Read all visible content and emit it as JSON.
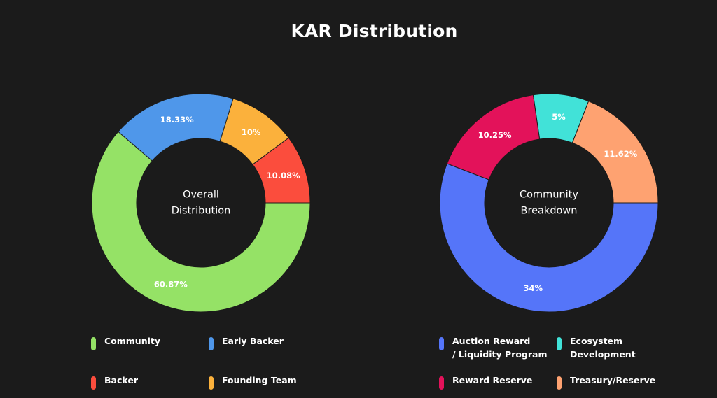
{
  "title": "KAR Distribution",
  "chart_data": [
    {
      "type": "pie",
      "variant": "donut",
      "center_label": [
        "Overall",
        "Distribution"
      ],
      "slices": [
        {
          "label": "Community",
          "value": 60.87,
          "display": "60.87%",
          "color": "#95e266"
        },
        {
          "label": "Early Backer",
          "value": 18.33,
          "display": "18.33%",
          "color": "#4f97ea"
        },
        {
          "label": "Founding Team",
          "value": 10,
          "display": "10%",
          "color": "#fbb13c"
        },
        {
          "label": "Backer",
          "value": 10.08,
          "display": "10.08%",
          "color": "#fb4d3d"
        }
      ],
      "legend_order": [
        "Community",
        "Early Backer",
        "Backer",
        "Founding Team"
      ],
      "legend_position": "bottom"
    },
    {
      "type": "pie",
      "variant": "donut",
      "center_label": [
        "Community",
        "Breakdown"
      ],
      "slices": [
        {
          "label": "Auction Reward / Liquidity Program",
          "value": 34,
          "display": "34%",
          "color": "#5575f9"
        },
        {
          "label": "Reward Reserve",
          "value": 10.25,
          "display": "10.25%",
          "color": "#e3125a"
        },
        {
          "label": "Ecosystem Development",
          "value": 5,
          "display": "5%",
          "color": "#41e2d8"
        },
        {
          "label": "Treasury/Reserve",
          "value": 11.62,
          "display": "11.62%",
          "color": "#fea271"
        }
      ],
      "legend_order": [
        "Auction Reward\n/ Liquidity Program",
        "Ecosystem\nDevelopment",
        "Reward Reserve",
        "Treasury/Reserve"
      ],
      "legend_position": "bottom"
    }
  ]
}
